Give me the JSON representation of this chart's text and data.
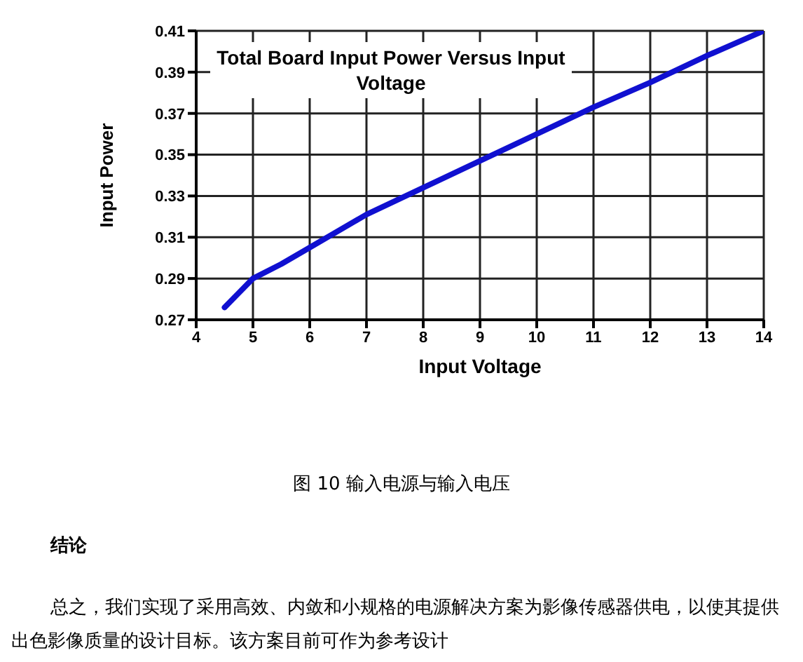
{
  "chart_data": {
    "type": "line",
    "title": "Total Board Input Power Versus Input Voltage",
    "xlabel": "Input Voltage",
    "ylabel": "Input Power",
    "x": [
      4.5,
      4.75,
      5,
      5.5,
      6,
      7,
      8,
      9,
      10,
      11,
      12,
      13,
      14
    ],
    "series": [
      {
        "color": "#1010d0",
        "values": [
          0.276,
          0.283,
          0.29,
          0.297,
          0.305,
          0.321,
          0.334,
          0.347,
          0.36,
          0.373,
          0.385,
          0.398,
          0.41
        ]
      }
    ],
    "xlim": [
      4,
      14
    ],
    "xticks": [
      4,
      5,
      6,
      7,
      8,
      9,
      10,
      11,
      12,
      13,
      14
    ],
    "ylim": [
      0.27,
      0.41
    ],
    "yticks": [
      0.27,
      0.29,
      0.31,
      0.33,
      0.35,
      0.37,
      0.39,
      0.41
    ],
    "grid": true,
    "marker": "none",
    "line_style": "solid",
    "annotations": [
      "图 10 输入电源与输入电压",
      "结论",
      "总之，我们实现了采用高效、内敛和小规格的电源解决方案为影像传感器供电，以使其提供出色影像质量的设计目标。该方案目前可作为参考设计"
    ]
  }
}
